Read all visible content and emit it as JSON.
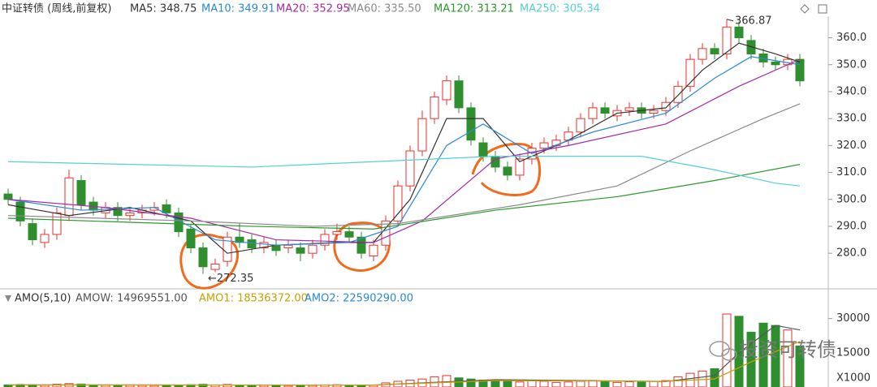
{
  "chart_data": [
    {
      "type": "candlestick",
      "title": "中证转债 (周线,前复权)",
      "up_color": "#e8322d",
      "down_color": "#2f8f2f",
      "ylim": [
        268,
        368
      ],
      "yticks": [
        {
          "value": 280,
          "label": "280.0"
        },
        {
          "value": 290,
          "label": "290.0"
        },
        {
          "value": 300,
          "label": "300.0"
        },
        {
          "value": 310,
          "label": "310.0"
        },
        {
          "value": 320,
          "label": "320.0"
        },
        {
          "value": 330,
          "label": "330.0"
        },
        {
          "value": 340,
          "label": "340.0"
        },
        {
          "value": 350,
          "label": "350.0"
        },
        {
          "value": 360,
          "label": "360.0"
        }
      ],
      "open": [
        302,
        299,
        291,
        284,
        287,
        294,
        307,
        299,
        295,
        297,
        294,
        295,
        296,
        298,
        295,
        289,
        282,
        274,
        277,
        286,
        285,
        282,
        283,
        282,
        282,
        280,
        283,
        287,
        288,
        286,
        279,
        283,
        292,
        305,
        318,
        330,
        337,
        344,
        334,
        321,
        316,
        312,
        309,
        315,
        319,
        320,
        322,
        325,
        330,
        334,
        331,
        333,
        334,
        332,
        333,
        336,
        342,
        352,
        356,
        354,
        364,
        359,
        354,
        351,
        350,
        352
      ],
      "high": [
        304,
        301,
        293,
        289,
        297,
        311,
        309,
        301,
        299,
        299,
        297,
        298,
        299,
        300,
        297,
        291,
        284,
        278,
        288,
        291,
        287,
        286,
        285,
        285,
        284,
        285,
        289,
        291,
        290,
        288,
        285,
        294,
        307,
        320,
        333,
        340,
        346,
        346,
        336,
        323,
        318,
        314,
        317,
        321,
        323,
        324,
        327,
        332,
        336,
        336,
        335,
        336,
        336,
        335,
        338,
        344,
        354,
        358,
        358,
        366.87,
        366,
        361,
        356,
        353,
        354,
        354
      ],
      "low": [
        298,
        290,
        283,
        282,
        285,
        292,
        296,
        294,
        293,
        292,
        292,
        293,
        294,
        293,
        286,
        280,
        272.35,
        273,
        275,
        282,
        280,
        280,
        279,
        280,
        277,
        278,
        281,
        285,
        284,
        278,
        277,
        281,
        290,
        303,
        316,
        328,
        335,
        332,
        320,
        314,
        310,
        307,
        307,
        313,
        317,
        318,
        320,
        323,
        328,
        330,
        329,
        331,
        330,
        330,
        331,
        334,
        340,
        350,
        352,
        352,
        358,
        352,
        349,
        348,
        348,
        342
      ],
      "close": [
        300,
        292,
        285,
        287,
        295,
        308,
        298,
        296,
        297,
        294,
        295,
        296,
        297,
        295,
        288,
        282,
        275,
        276,
        286,
        284,
        282,
        284,
        281,
        283,
        280,
        283,
        287,
        288,
        286,
        280,
        283,
        292,
        305,
        318,
        330,
        338,
        344,
        334,
        322,
        316,
        312,
        309,
        315,
        319,
        321,
        322,
        325,
        330,
        334,
        332,
        333,
        334,
        332,
        333,
        336,
        342,
        352,
        356,
        354,
        364,
        360,
        354,
        351,
        350,
        352,
        344
      ],
      "series": [
        {
          "name": "MA5: 348.75",
          "color": "#333333",
          "x": [
            0,
            5,
            10,
            15,
            18,
            22,
            27,
            30,
            33,
            36,
            39,
            42,
            46,
            50,
            54,
            57,
            60,
            63,
            65
          ],
          "values": [
            298,
            294,
            297,
            292,
            280,
            283,
            284,
            284,
            300,
            330,
            330,
            314,
            322,
            332,
            334,
            348,
            358,
            354,
            351
          ]
        },
        {
          "name": "MA10: 349.91",
          "color": "#2b8ad8",
          "x": [
            0,
            6,
            12,
            17,
            22,
            28,
            32,
            36,
            39,
            43,
            48,
            54,
            58,
            61,
            65
          ],
          "values": [
            300,
            296,
            297,
            285,
            283,
            284,
            290,
            320,
            328,
            317,
            325,
            332,
            345,
            353,
            350
          ]
        },
        {
          "name": "MA20: 352.95",
          "color": "#a52aa5",
          "x": [
            0,
            8,
            15,
            22,
            30,
            34,
            40,
            46,
            54,
            60,
            65
          ],
          "values": [
            300,
            297,
            293,
            285,
            284,
            292,
            315,
            320,
            328,
            342,
            352
          ]
        },
        {
          "name": "MA60: 335.50",
          "color": "#8a8a8a",
          "x": [
            0,
            15,
            25,
            32,
            42,
            50,
            56,
            62,
            65
          ],
          "values": [
            294,
            292,
            290,
            291,
            298,
            305,
            318,
            330,
            335.5
          ]
        },
        {
          "name": "MA120: 313.21",
          "color": "#2a9a2a",
          "x": [
            0,
            20,
            30,
            40,
            50,
            58,
            65
          ],
          "values": [
            293,
            290,
            289,
            296,
            301,
            307,
            313
          ]
        },
        {
          "name": "MA250: 305.34",
          "color": "#52d0d6",
          "x": [
            0,
            20,
            40,
            52,
            58,
            63,
            65
          ],
          "values": [
            314,
            312,
            316,
            316,
            311,
            306,
            305
          ]
        }
      ],
      "annotations": [
        {
          "text": "366.87"
        },
        {
          "text": "←272.35"
        }
      ]
    },
    {
      "type": "bar",
      "title": "AMO(5,10)",
      "ylim": [
        0,
        34500
      ],
      "yticks": [
        15000,
        30000
      ],
      "unit": "X1000",
      "values": [
        900,
        1100,
        1000,
        800,
        1200,
        1500,
        1300,
        900,
        800,
        700,
        800,
        750,
        700,
        650,
        800,
        1000,
        1200,
        900,
        1100,
        800,
        700,
        750,
        700,
        650,
        800,
        700,
        900,
        1000,
        800,
        900,
        800,
        1800,
        2500,
        3000,
        3500,
        4500,
        5000,
        4000,
        3500,
        3000,
        2800,
        2500,
        2200,
        3000,
        2500,
        2000,
        2200,
        2500,
        2800,
        2400,
        2000,
        2300,
        2100,
        2500,
        2800,
        4500,
        6000,
        7000,
        8000,
        32000,
        31000,
        24000,
        28000,
        27000,
        25000,
        18000
      ],
      "series": [
        {
          "name": "AMOW: 14969551.00",
          "color": "#555555",
          "x": [
            0,
            30,
            40,
            54,
            58,
            60,
            63,
            65
          ],
          "values": [
            900,
            850,
            3200,
            2400,
            5000,
            15000,
            27000,
            25000
          ]
        },
        {
          "name": "AMO1: 18536372.00",
          "color": "#c9a100",
          "x": [
            0,
            30,
            40,
            54,
            58,
            61,
            65
          ],
          "values": [
            950,
            850,
            2800,
            2500,
            3500,
            11000,
            20000
          ]
        },
        {
          "name": "AMO2: 22590290.00",
          "color": "#2b8ad8",
          "x": [],
          "values": []
        }
      ]
    },
    {
      "watermark": "投资可转债"
    }
  ]
}
